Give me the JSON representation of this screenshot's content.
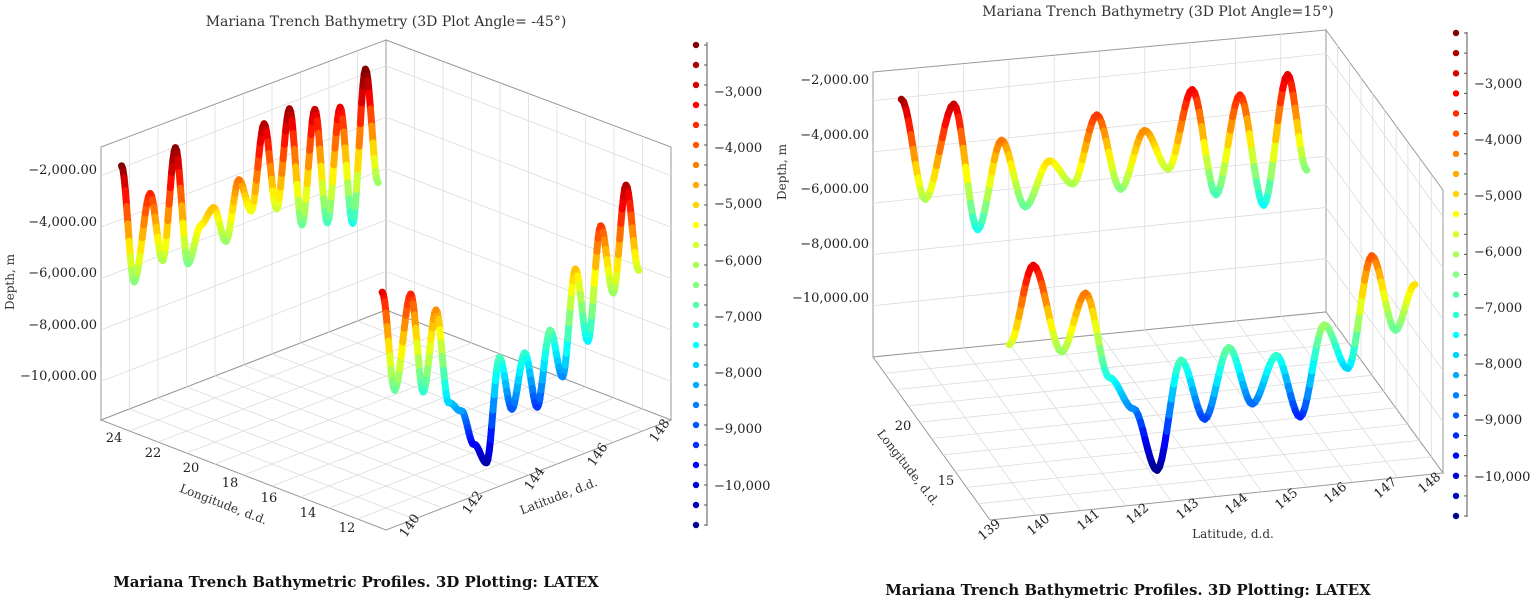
{
  "colormap": [
    "#00008f",
    "#0000ff",
    "#0080ff",
    "#00ffff",
    "#80ff80",
    "#ffff00",
    "#ff8000",
    "#ff0000",
    "#800000"
  ],
  "chart_data": [
    {
      "type": "line",
      "title": "Mariana Trench Bathymetry (3D Plot Angle= -45°)",
      "xlabel": "Latitude, d.d.",
      "ylabel": "Longitude, d.d.",
      "zlabel": "Depth, m",
      "xlim": [
        139.5,
        148.5
      ],
      "ylim": [
        11,
        25
      ],
      "zlim": [
        -11500,
        -1000
      ],
      "xticks": [
        "140",
        "142",
        "144",
        "146",
        "148"
      ],
      "yticks": [
        "24",
        "22",
        "20",
        "18",
        "16",
        "14",
        "12"
      ],
      "zticks": [
        "−2,000.00",
        "−4,000.00",
        "−6,000.00",
        "−8,000.00",
        "−10,000.00"
      ],
      "colorbar_ticks": [
        "−3,000",
        "−4,000",
        "−5,000",
        "−6,000",
        "−7,000",
        "−8,000",
        "−9,000",
        "−10,000"
      ],
      "caption": "Mariana Trench Bathymetric Profiles. 3D Plotting: LATEX",
      "series": [
        {
          "x": [
            139.7,
            140.1,
            140.6,
            141.0,
            141.4,
            141.8,
            142.2,
            142.6,
            143.0,
            143.4,
            143.8,
            144.2,
            144.6,
            145.0,
            145.4,
            145.8,
            146.2,
            146.6,
            147.0,
            147.4,
            147.8
          ],
          "y": [
            11.5,
            11.5,
            11.5,
            11.5,
            11.5,
            11.5,
            11.5,
            11.5,
            11.5,
            11.5,
            11.5,
            11.5,
            11.5,
            11.5,
            11.5,
            11.5,
            11.5,
            11.5,
            11.5,
            11.5,
            11.5
          ],
          "z": [
            -2500,
            -6500,
            -3000,
            -7000,
            -4000,
            -7800,
            -8300,
            -9800,
            -10700,
            -6800,
            -9000,
            -7000,
            -9300,
            -6500,
            -8500,
            -4500,
            -7500,
            -3200,
            -6000,
            -2000,
            -5500
          ]
        },
        {
          "x": [
            139.7,
            140.1,
            140.6,
            141.0,
            141.4,
            141.8,
            142.2,
            142.6,
            143.0,
            143.4,
            143.8,
            144.2,
            144.6,
            145.0,
            145.4,
            145.8,
            146.2,
            146.6,
            147.0,
            147.4,
            147.8
          ],
          "y": [
            24.3,
            24.3,
            24.3,
            24.3,
            24.3,
            24.3,
            24.3,
            24.3,
            24.3,
            24.3,
            24.3,
            24.3,
            24.3,
            24.3,
            24.3,
            24.3,
            24.3,
            24.3,
            24.3,
            24.3,
            24.3
          ],
          "z": [
            -1500,
            -6200,
            -3000,
            -5800,
            -1600,
            -6300,
            -5000,
            -4500,
            -6000,
            -3800,
            -5200,
            -2000,
            -5500,
            -1800,
            -6500,
            -2200,
            -6800,
            -2500,
            -7200,
            -1400,
            -6000
          ]
        }
      ]
    },
    {
      "type": "line",
      "title": "Mariana Trench Bathymetry (3D Plot Angle=15°)",
      "xlabel": "Latitude, d.d.",
      "ylabel": "Longitude, d.d.",
      "zlabel": "Depth, m",
      "xlim": [
        139,
        148.5
      ],
      "ylim": [
        11,
        24
      ],
      "zlim": [
        -12000,
        -1000
      ],
      "xticks": [
        "139",
        "140",
        "141",
        "142",
        "143",
        "144",
        "145",
        "146",
        "147",
        "148"
      ],
      "yticks": [
        "20",
        "15"
      ],
      "zticks": [
        "−2,000.00",
        "−4,000.00",
        "−6,000.00",
        "−8,000.00",
        "−10,000.00"
      ],
      "colorbar_ticks": [
        "−3,000",
        "−4,000",
        "−5,000",
        "−6,000",
        "−7,000",
        "−8,000",
        "−9,000",
        "−10,000"
      ],
      "caption": "Mariana Trench Bathymetric Profiles. 3D Plotting: LATEX",
      "series": [
        {
          "x": [
            139.5,
            140.0,
            140.6,
            141.1,
            141.6,
            142.1,
            142.6,
            143.1,
            143.6,
            144.1,
            144.6,
            145.1,
            145.6,
            146.1,
            146.6,
            147.1,
            147.6,
            148.0
          ],
          "y": [
            11.5,
            11.5,
            11.5,
            11.5,
            11.5,
            11.5,
            11.5,
            11.5,
            11.5,
            11.5,
            11.5,
            11.5,
            11.5,
            11.5,
            11.5,
            11.5,
            11.5,
            11.5
          ],
          "z": [
            -5500,
            -2500,
            -6000,
            -3800,
            -7200,
            -8500,
            -11000,
            -6800,
            -9200,
            -6500,
            -8800,
            -7000,
            -9500,
            -6000,
            -7800,
            -3500,
            -6500,
            -4800
          ]
        },
        {
          "x": [
            139.5,
            140.0,
            140.6,
            141.1,
            141.6,
            142.1,
            142.6,
            143.1,
            143.6,
            144.1,
            144.6,
            145.1,
            145.6,
            146.1,
            146.6,
            147.1,
            147.6,
            148.0
          ],
          "y": [
            23.5,
            23.5,
            23.5,
            23.5,
            23.5,
            23.5,
            23.5,
            23.5,
            23.5,
            23.5,
            23.5,
            23.5,
            23.5,
            23.5,
            23.5,
            23.5,
            23.5,
            23.5
          ],
          "z": [
            -1800,
            -5800,
            -2200,
            -7200,
            -3800,
            -6500,
            -4800,
            -5800,
            -3200,
            -6200,
            -4000,
            -5600,
            -2600,
            -6800,
            -3000,
            -7400,
            -2400,
            -6200
          ]
        }
      ]
    }
  ]
}
